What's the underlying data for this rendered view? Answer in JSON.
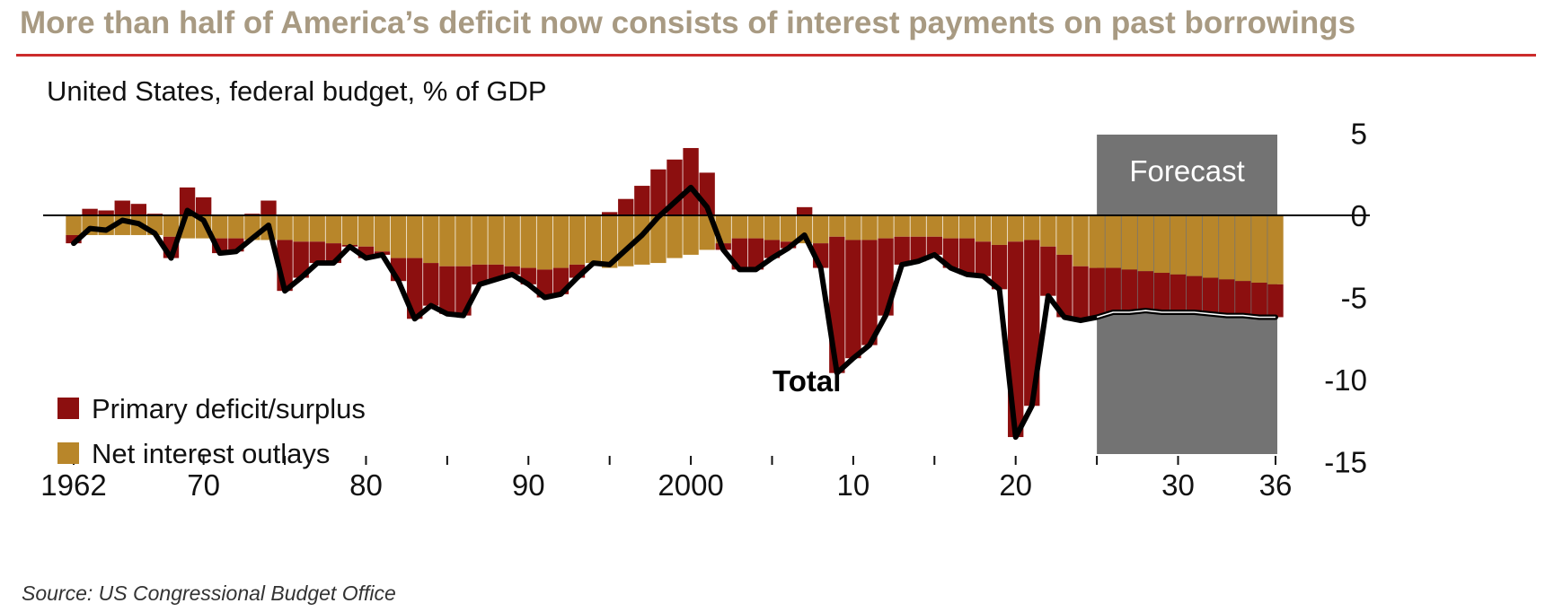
{
  "headline": "More than half of America’s deficit now consists of interest payments on past borrowings",
  "source": "Source: US Congressional Budget Office",
  "colors": {
    "headline": "#a89a82",
    "rule": "#cc2b2b",
    "primary": "#8c0f0f",
    "interest": "#b8862a",
    "total_line": "#000000",
    "forecast_band": "#737373",
    "forecast_text": "#ffffff"
  },
  "chart_data": {
    "type": "bar",
    "stacked": true,
    "subtitle": "United States, federal budget, % of GDP",
    "x": [
      1962,
      1963,
      1964,
      1965,
      1966,
      1967,
      1968,
      1969,
      1970,
      1971,
      1972,
      1973,
      1974,
      1975,
      1976,
      1977,
      1978,
      1979,
      1980,
      1981,
      1982,
      1983,
      1984,
      1985,
      1986,
      1987,
      1988,
      1989,
      1990,
      1991,
      1992,
      1993,
      1994,
      1995,
      1996,
      1997,
      1998,
      1999,
      2000,
      2001,
      2002,
      2003,
      2004,
      2005,
      2006,
      2007,
      2008,
      2009,
      2010,
      2011,
      2012,
      2013,
      2014,
      2015,
      2016,
      2017,
      2018,
      2019,
      2020,
      2021,
      2022,
      2023,
      2024,
      2025,
      2026,
      2027,
      2028,
      2029,
      2030,
      2031,
      2032,
      2033,
      2034,
      2035,
      2036
    ],
    "x_tick_labels": [
      "1962",
      "70",
      "80",
      "90",
      "2000",
      "10",
      "20",
      "30",
      "36"
    ],
    "x_tick_values": [
      1962,
      1970,
      1980,
      1990,
      2000,
      2010,
      2020,
      2030,
      2036
    ],
    "x_minor_ticks": [
      1975,
      1985,
      1995,
      2005,
      2015,
      2025
    ],
    "y_ticks": [
      5,
      0,
      -5,
      -10,
      -15
    ],
    "ylim": [
      -16,
      6
    ],
    "series": [
      {
        "name": "Primary deficit/surplus",
        "values": [
          -0.5,
          0.4,
          0.3,
          0.9,
          0.7,
          0.1,
          -1.3,
          1.7,
          1.1,
          -0.9,
          -0.8,
          0.1,
          0.9,
          -3.1,
          -2.2,
          -1.3,
          -1.2,
          -0.1,
          -0.7,
          -0.2,
          -1.4,
          -3.7,
          -2.6,
          -2.9,
          -3.0,
          -1.2,
          -0.9,
          -0.5,
          -1.0,
          -1.7,
          -1.6,
          -0.8,
          0.0,
          0.2,
          1.0,
          1.8,
          2.8,
          3.4,
          4.1,
          2.6,
          -0.4,
          -1.9,
          -1.9,
          -1.1,
          -0.4,
          0.5,
          -1.5,
          -8.3,
          -7.2,
          -6.4,
          -4.7,
          -1.7,
          -1.5,
          -1.1,
          -1.8,
          -2.2,
          -2.1,
          -2.7,
          -11.9,
          -10.1,
          -3.0,
          -3.8,
          -3.3,
          -3.0,
          -2.7,
          -2.6,
          -2.4,
          -2.4,
          -2.3,
          -2.2,
          -2.2,
          -2.2,
          -2.1,
          -2.1,
          -2.0
        ]
      },
      {
        "name": "Net interest outlays",
        "values": [
          -1.2,
          -1.2,
          -1.2,
          -1.2,
          -1.2,
          -1.2,
          -1.3,
          -1.4,
          -1.4,
          -1.4,
          -1.4,
          -1.5,
          -1.5,
          -1.5,
          -1.6,
          -1.6,
          -1.7,
          -1.8,
          -1.9,
          -2.2,
          -2.6,
          -2.6,
          -2.9,
          -3.1,
          -3.1,
          -3.0,
          -3.0,
          -3.1,
          -3.2,
          -3.3,
          -3.2,
          -3.0,
          -2.9,
          -3.2,
          -3.1,
          -3.0,
          -2.9,
          -2.6,
          -2.4,
          -2.1,
          -1.7,
          -1.4,
          -1.4,
          -1.5,
          -1.6,
          -1.7,
          -1.7,
          -1.3,
          -1.5,
          -1.5,
          -1.4,
          -1.3,
          -1.3,
          -1.3,
          -1.4,
          -1.4,
          -1.6,
          -1.8,
          -1.6,
          -1.5,
          -1.9,
          -2.4,
          -3.1,
          -3.2,
          -3.2,
          -3.3,
          -3.4,
          -3.5,
          -3.6,
          -3.7,
          -3.8,
          -3.9,
          -4.0,
          -4.1,
          -4.2
        ]
      }
    ],
    "total_label": "Total",
    "forecast_label": "Forecast",
    "forecast_range": [
      2025,
      2036
    ],
    "legend_position": "bottom-left",
    "grid": false
  }
}
